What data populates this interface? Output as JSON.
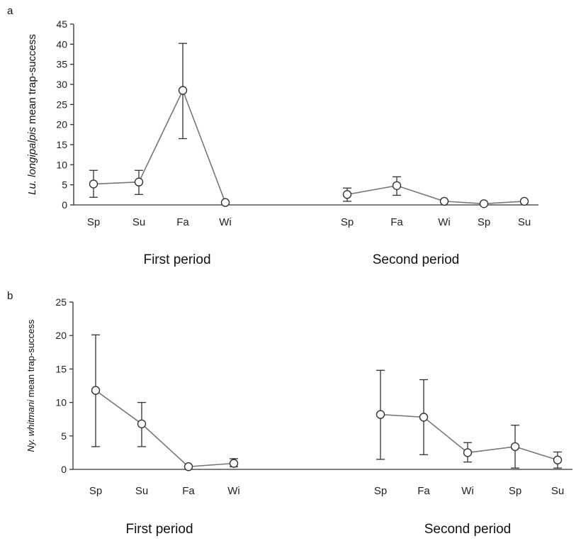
{
  "chart_data": [
    {
      "type": "line",
      "panel_label": "a",
      "ylabel_species": "Lu. longipalpis",
      "ylabel_rest": " mean trap-success",
      "ylim": [
        0,
        45
      ],
      "yticks": [
        0,
        5,
        10,
        15,
        20,
        25,
        30,
        35,
        40,
        45
      ],
      "grid": false,
      "groups": [
        {
          "period_label": "First period",
          "categories": [
            "Sp",
            "Su",
            "Fa",
            "Wi"
          ],
          "values": [
            5.2,
            5.7,
            28.5,
            0.6
          ],
          "err_low": [
            1.9,
            2.6,
            16.5,
            0.6
          ],
          "err_high": [
            8.6,
            8.6,
            40.2,
            0.6
          ]
        },
        {
          "period_label": "Second period",
          "categories": [
            "Sp",
            "Fa",
            "Wi",
            "Sp",
            "Su"
          ],
          "values": [
            2.6,
            4.8,
            0.9,
            0.3,
            0.9
          ],
          "err_low": [
            0.9,
            2.4,
            0.9,
            0.3,
            0.9
          ],
          "err_high": [
            4.2,
            7.0,
            0.9,
            0.3,
            0.9
          ]
        }
      ]
    },
    {
      "type": "line",
      "panel_label": "b",
      "ylabel_species": "Ny. whitmani",
      "ylabel_rest": "  mean trap-success",
      "ylim": [
        0,
        25
      ],
      "yticks": [
        0,
        5,
        10,
        15,
        20,
        25
      ],
      "grid": false,
      "groups": [
        {
          "period_label": "First period",
          "categories": [
            "Sp",
            "Su",
            "Fa",
            "Wi"
          ],
          "values": [
            11.8,
            6.8,
            0.4,
            0.9
          ],
          "err_low": [
            3.4,
            3.4,
            0.4,
            0.4
          ],
          "err_high": [
            20.1,
            10.0,
            0.4,
            1.6
          ]
        },
        {
          "period_label": "Second period",
          "categories": [
            "Sp",
            "Fa",
            "Wi",
            "Sp",
            "Su"
          ],
          "values": [
            8.2,
            7.8,
            2.5,
            3.4,
            1.4
          ],
          "err_low": [
            1.5,
            2.2,
            1.1,
            0.2,
            0.2
          ],
          "err_high": [
            14.8,
            13.4,
            4.0,
            6.6,
            2.6
          ]
        }
      ]
    }
  ]
}
